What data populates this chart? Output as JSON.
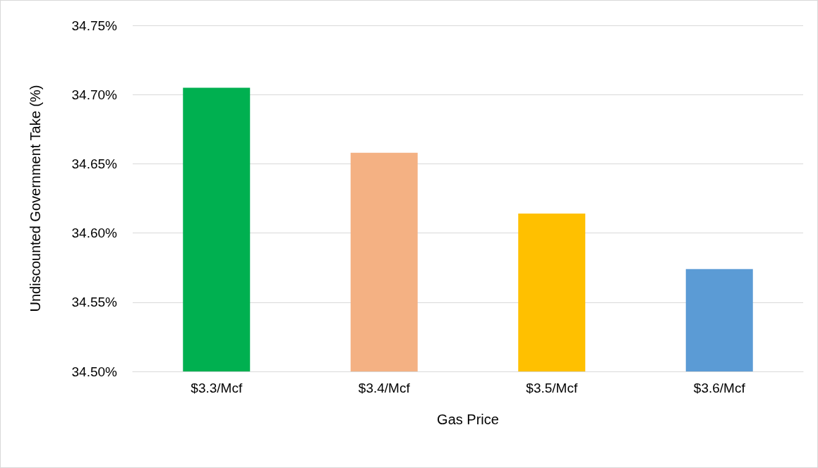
{
  "chart_data": {
    "type": "bar",
    "xlabel": "Gas Price",
    "ylabel": "Undiscounted Government Take (%)",
    "categories": [
      "$3.3/Mcf",
      "$3.4/Mcf",
      "$3.5/Mcf",
      "$3.6/Mcf"
    ],
    "values": [
      34.705,
      34.658,
      34.614,
      34.574
    ],
    "colors": [
      "#00b050",
      "#f4b183",
      "#ffc000",
      "#5b9bd5"
    ],
    "ylim": [
      34.5,
      34.75
    ],
    "yticks": [
      {
        "value": 34.5,
        "label": "34.50%"
      },
      {
        "value": 34.55,
        "label": "34.55%"
      },
      {
        "value": 34.6,
        "label": "34.60%"
      },
      {
        "value": 34.65,
        "label": "34.65%"
      },
      {
        "value": 34.7,
        "label": "34.70%"
      },
      {
        "value": 34.75,
        "label": "34.75%"
      }
    ],
    "grid": "y"
  }
}
